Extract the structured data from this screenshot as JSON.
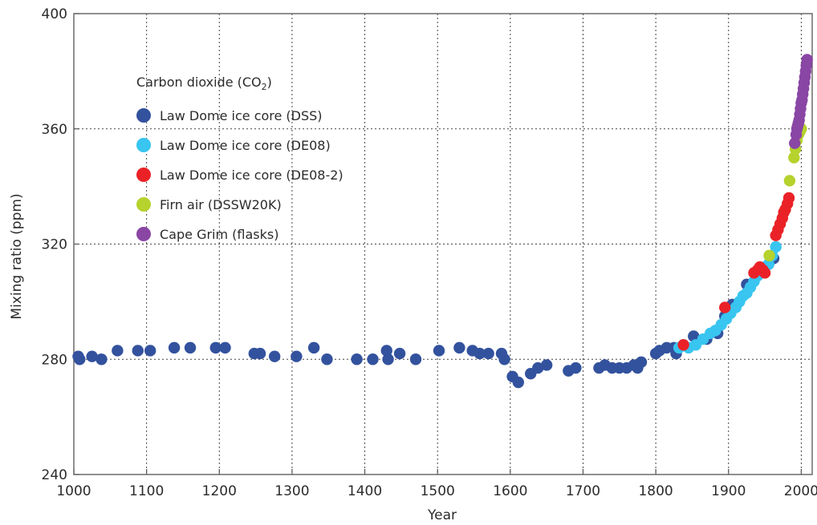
{
  "colors": {
    "law_dome_dss": "#33529e",
    "law_dome_de08": "#38c5f0",
    "law_dome_de08_2": "#ea2227",
    "firn_air": "#b5d22d",
    "cape_grim": "#8a46a4"
  },
  "chart_data": {
    "type": "scatter",
    "xlabel": "Year",
    "ylabel": "Mixing ratio (ppm)",
    "xlim": [
      1000,
      2015
    ],
    "ylim": [
      240,
      400
    ],
    "xticks": [
      1000,
      1100,
      1200,
      1300,
      1400,
      1500,
      1600,
      1700,
      1800,
      1900,
      2000
    ],
    "yticks": [
      240,
      280,
      320,
      360,
      400
    ],
    "grid": true,
    "legend": {
      "placement": "upper-left",
      "title_main": "Carbon dioxide (CO",
      "title_sub": "2",
      "title_end": ")"
    },
    "series": [
      {
        "name": "Law Dome ice core (DSS)",
        "color": "#33529e",
        "x": [
          1006,
          1008,
          1025,
          1038,
          1060,
          1088,
          1105,
          1138,
          1160,
          1195,
          1208,
          1248,
          1256,
          1276,
          1306,
          1330,
          1348,
          1389,
          1411,
          1430,
          1432,
          1448,
          1470,
          1502,
          1530,
          1548,
          1558,
          1570,
          1588,
          1592,
          1603,
          1611,
          1628,
          1638,
          1650,
          1680,
          1690,
          1722,
          1730,
          1740,
          1750,
          1760,
          1770,
          1775,
          1780,
          1800,
          1805,
          1815,
          1825,
          1828,
          1838,
          1852,
          1870,
          1885,
          1895,
          1901,
          1905,
          1925,
          1938,
          1955,
          1962
        ],
        "y": [
          281,
          280,
          281,
          280,
          283,
          283,
          283,
          284,
          284,
          284,
          284,
          282,
          282,
          281,
          281,
          284,
          280,
          280,
          280,
          283,
          280,
          282,
          280,
          283,
          284,
          283,
          282,
          282,
          282,
          280,
          274,
          272,
          275,
          277,
          278,
          276,
          277,
          277,
          278,
          277,
          277,
          277,
          278,
          277,
          279,
          282,
          283,
          284,
          284,
          282,
          285,
          288,
          287,
          289,
          295,
          297,
          299,
          306,
          310,
          313,
          315
        ]
      },
      {
        "name": "Law Dome ice core (DE08)",
        "color": "#38c5f0",
        "x": [
          1832,
          1845,
          1855,
          1865,
          1875,
          1882,
          1890,
          1897,
          1903,
          1910,
          1915,
          1920,
          1925,
          1930,
          1935,
          1940,
          1945,
          1950,
          1955,
          1960,
          1965
        ],
        "y": [
          284,
          284,
          285,
          287,
          289,
          290,
          292,
          294,
          296,
          298,
          300,
          302,
          303,
          305,
          307,
          309,
          311,
          312,
          313,
          316,
          319
        ]
      },
      {
        "name": "Law Dome ice core (DE08-2)",
        "color": "#ea2227",
        "x": [
          1838,
          1895,
          1935,
          1940,
          1943,
          1947,
          1950,
          1965,
          1968,
          1971,
          1974,
          1976,
          1978,
          1981,
          1983
        ],
        "y": [
          285,
          298,
          310,
          311,
          312,
          311,
          310,
          323,
          325,
          327,
          329,
          331,
          332,
          334,
          336
        ]
      },
      {
        "name": "Firn air (DSSW20K)",
        "color": "#b5d22d",
        "x": [
          1956,
          1984,
          1990,
          1992,
          1994,
          1996,
          1998,
          2000
        ],
        "y": [
          316,
          342,
          350,
          353,
          356,
          358,
          359,
          360
        ]
      },
      {
        "name": "Cape Grim (flasks)",
        "color": "#8a46a4",
        "x": [
          1991,
          1993,
          1994,
          1995,
          1996,
          1997,
          1998,
          1999,
          2000,
          2001,
          2002,
          2003,
          2004,
          2005,
          2006,
          2007,
          2008
        ],
        "y": [
          355,
          358,
          360,
          361,
          362,
          363,
          365,
          367,
          369,
          370,
          372,
          374,
          376,
          378,
          380,
          382,
          384
        ]
      }
    ]
  }
}
